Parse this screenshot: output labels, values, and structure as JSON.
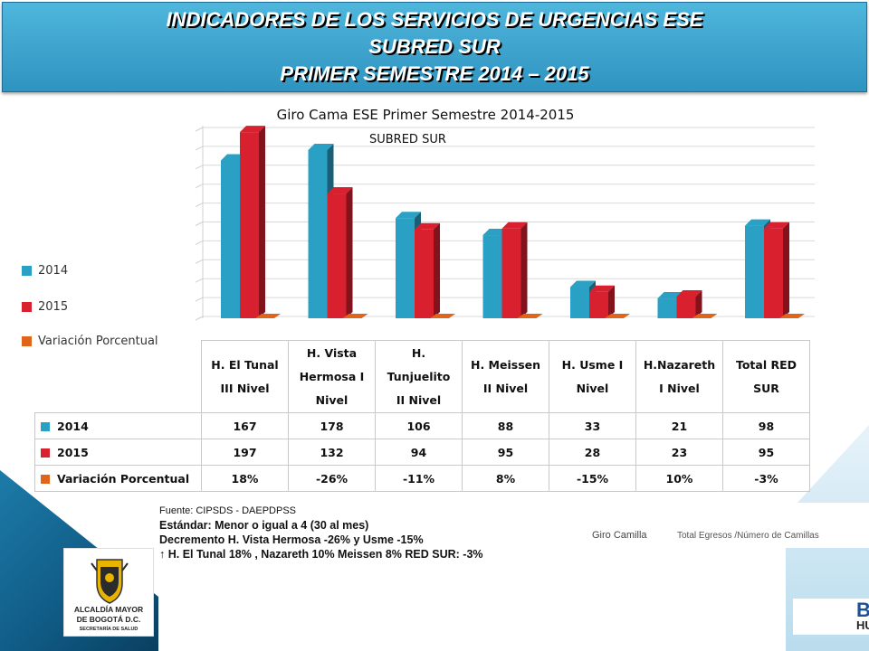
{
  "banner": {
    "line1": "INDICADORES DE LOS SERVICIOS DE URGENCIAS ESE",
    "line2": "SUBRED  SUR",
    "line3": "PRIMER SEMESTRE 2014 – 2015"
  },
  "colors": {
    "y2014": "#2aa0c4",
    "y2015": "#d8202f",
    "variacion": "#e0641a"
  },
  "chart_data": {
    "type": "bar",
    "title": "Giro Cama ESE Primer Semestre 2014-2015",
    "subtitle": "SUBRED SUR",
    "categories": [
      "H. El Tunal III Nivel",
      "H. Vista Hermosa I Nivel",
      "H. Tunjuelito II Nivel",
      "H. Meissen II Nivel",
      "H. Usme I Nivel",
      "H.Nazareth I Nivel",
      "Total RED SUR"
    ],
    "category_lines": [
      [
        "H. El Tunal",
        "III Nivel"
      ],
      [
        "H. Vista",
        "Hermosa I",
        "Nivel"
      ],
      [
        "H.",
        "Tunjuelito",
        "II Nivel"
      ],
      [
        "H. Meissen",
        "II Nivel"
      ],
      [
        "H. Usme I",
        "Nivel"
      ],
      [
        "H.Nazareth",
        "I Nivel"
      ],
      [
        "Total RED",
        "SUR"
      ]
    ],
    "series": [
      {
        "name": "2014",
        "values": [
          167,
          178,
          106,
          88,
          33,
          21,
          98
        ],
        "display": [
          "167",
          "178",
          "106",
          "88",
          "33",
          "21",
          "98"
        ]
      },
      {
        "name": "2015",
        "values": [
          197,
          132,
          94,
          95,
          28,
          23,
          95
        ],
        "display": [
          "197",
          "132",
          "94",
          "95",
          "28",
          "23",
          "95"
        ]
      },
      {
        "name": "Variación Porcentual",
        "values": [
          0.18,
          -0.26,
          -0.11,
          0.08,
          -0.15,
          0.1,
          -0.03
        ],
        "display": [
          "18%",
          "-26%",
          "-11%",
          "8%",
          "-15%",
          "10%",
          "-3%"
        ]
      }
    ],
    "ylim": [
      0,
      200
    ],
    "grid": true,
    "legend": "left"
  },
  "notes": {
    "source": "Fuente: CIPSDS - DAEPDPSS",
    "standard": "Estándar: Menor o igual a 4  (30 al mes)",
    "decrease": "Decremento H. Vista Hermosa -26% y Usme -15%",
    "increase": "↑ H. El Tunal 18% , Nazareth 10% Meissen 8% RED SUR: -3%"
  },
  "formula": {
    "label": "Giro Camilla",
    "definition": "Total Egresos /Número de Camillas"
  },
  "logo": {
    "line1": "ALCALDÍA MAYOR",
    "line2": "DE BOGOTÁ D.C.",
    "line3": "SECRETARÍA DE SALUD"
  },
  "brand": {
    "line1": "BO",
    "line2": "HU"
  }
}
